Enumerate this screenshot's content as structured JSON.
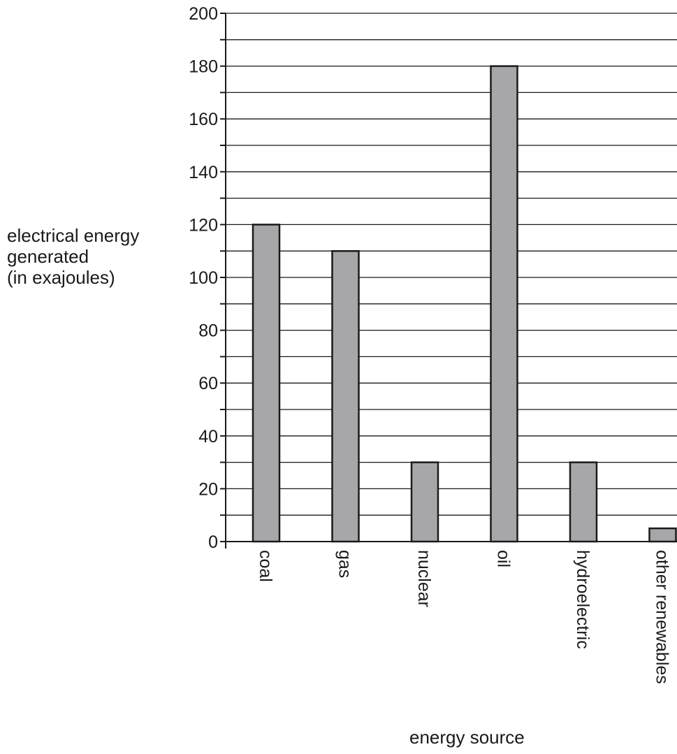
{
  "chart_data": {
    "type": "bar",
    "categories": [
      "coal",
      "gas",
      "nuclear",
      "oil",
      "hydroelectric",
      "other renewables"
    ],
    "values": [
      120,
      110,
      30,
      180,
      30,
      5
    ],
    "ylabel_lines": [
      "electrical energy",
      "generated",
      "(in exajoules)"
    ],
    "xlabel": "energy source",
    "ylim": [
      0,
      200
    ],
    "yticks": [
      0,
      20,
      40,
      60,
      80,
      100,
      120,
      140,
      160,
      180,
      200
    ],
    "minor_gridlines_every": 10,
    "grid": true,
    "bar_color": "#a7a7aa",
    "bar_edge_color": "#1a1a1a"
  }
}
